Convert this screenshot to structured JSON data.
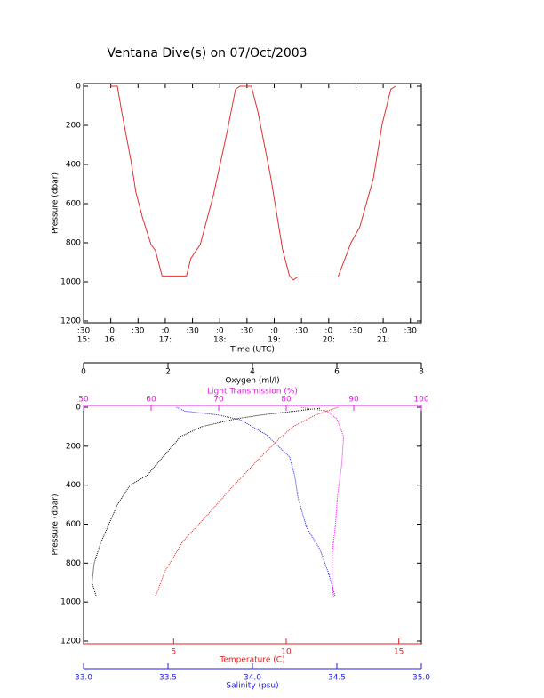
{
  "chart_data": [
    {
      "type": "line",
      "title": "Ventana Dive(s) on 07/Oct/2003",
      "xlabel": "Time (UTC)",
      "ylabel": "Pressure (dbar)",
      "color": "#e03030",
      "xlim": [
        15.5,
        21.7
      ],
      "ylim": [
        1200,
        0
      ],
      "xticks": [
        {
          "value": 15.5,
          "label": ":30"
        },
        {
          "value": 16,
          "label": ":0"
        },
        {
          "value": 16.5,
          "label": ":30"
        },
        {
          "value": 17,
          "label": ":0"
        },
        {
          "value": 17.5,
          "label": ":30"
        },
        {
          "value": 18,
          "label": ":0"
        },
        {
          "value": 18.5,
          "label": ":30"
        },
        {
          "value": 19,
          "label": ":0"
        },
        {
          "value": 19.5,
          "label": ":30"
        },
        {
          "value": 20,
          "label": ":0"
        },
        {
          "value": 20.5,
          "label": ":30"
        },
        {
          "value": 21,
          "label": ":0"
        },
        {
          "value": 21.5,
          "label": ":30"
        }
      ],
      "xtick_sublabels": [
        "15:",
        "16:",
        null,
        "17:",
        null,
        "18:",
        null,
        "19:",
        null,
        "20:",
        null,
        "21:",
        null
      ],
      "yticks": [
        0,
        200,
        400,
        600,
        800,
        1000,
        1200
      ],
      "x": [
        15.99,
        16.12,
        16.2,
        16.37,
        16.46,
        16.58,
        16.74,
        16.82,
        16.94,
        17.39,
        17.47,
        17.64,
        17.88,
        18.13,
        18.29,
        18.37,
        18.58,
        18.7,
        18.94,
        19.15,
        19.28,
        19.35,
        19.43,
        19.6,
        20.17,
        20.3,
        20.41,
        20.57,
        20.82,
        20.98,
        21.14,
        21.23
      ],
      "values": [
        0,
        0,
        130,
        380,
        540,
        670,
        810,
        840,
        970,
        970,
        880,
        810,
        560,
        240,
        15,
        0,
        0,
        130,
        470,
        830,
        970,
        990,
        975,
        975,
        975,
        880,
        800,
        720,
        470,
        195,
        15,
        0
      ]
    },
    {
      "type": "profile",
      "ylabel": "Pressure (dbar)",
      "ylim": [
        1200,
        0
      ],
      "yticks": [
        0,
        200,
        400,
        600,
        800,
        1000,
        1200
      ],
      "axes": [
        {
          "label": "Oxygen (ml/l)",
          "color": "#000000",
          "xlim": [
            0,
            8
          ],
          "xticks": [
            0,
            2,
            4,
            6,
            8
          ],
          "x": [
            5.6,
            4.2,
            3.6,
            2.8,
            2.3,
            1.9,
            1.5,
            1.1,
            0.8,
            0.6,
            0.4,
            0.25,
            0.2,
            0.3
          ],
          "values": [
            5,
            40,
            60,
            100,
            150,
            250,
            350,
            400,
            500,
            600,
            700,
            800,
            900,
            970
          ]
        },
        {
          "label": "Light Transmission (%)",
          "color": "#e020e0",
          "xlim": [
            50,
            100
          ],
          "xticks": [
            50,
            60,
            70,
            80,
            90,
            100
          ],
          "x": [
            82,
            86,
            87.5,
            88.5,
            88.2,
            87.6,
            87.3,
            86.8,
            86.8,
            87
          ],
          "values": [
            0,
            20,
            60,
            150,
            300,
            450,
            600,
            750,
            900,
            970
          ]
        },
        {
          "label": "Temperature (C)",
          "color": "#e02020",
          "xlim": [
            1,
            16
          ],
          "xticks": [
            5,
            10,
            15
          ],
          "x": [
            12.3,
            11.3,
            10.3,
            9.7,
            8.7,
            7.6,
            6.6,
            5.4,
            4.6,
            4.2
          ],
          "values": [
            0,
            40,
            100,
            160,
            275,
            410,
            540,
            690,
            844,
            970
          ]
        },
        {
          "label": "Salinity (psu)",
          "color": "#2020e0",
          "xlim": [
            33,
            35
          ],
          "xticks": [
            {
              "value": 33,
              "label": "33.0"
            },
            {
              "value": 33.5,
              "label": "33.5"
            },
            {
              "value": 34,
              "label": "34.0"
            },
            {
              "value": 34.5,
              "label": "34.5"
            },
            {
              "value": 35,
              "label": "35.0"
            }
          ],
          "x": [
            33.55,
            33.6,
            33.8,
            33.93,
            34.08,
            34.22,
            34.25,
            34.27,
            34.32,
            34.4,
            34.45,
            34.49
          ],
          "values": [
            0,
            20,
            40,
            65,
            140,
            255,
            350,
            465,
            615,
            730,
            850,
            970
          ]
        }
      ]
    }
  ]
}
